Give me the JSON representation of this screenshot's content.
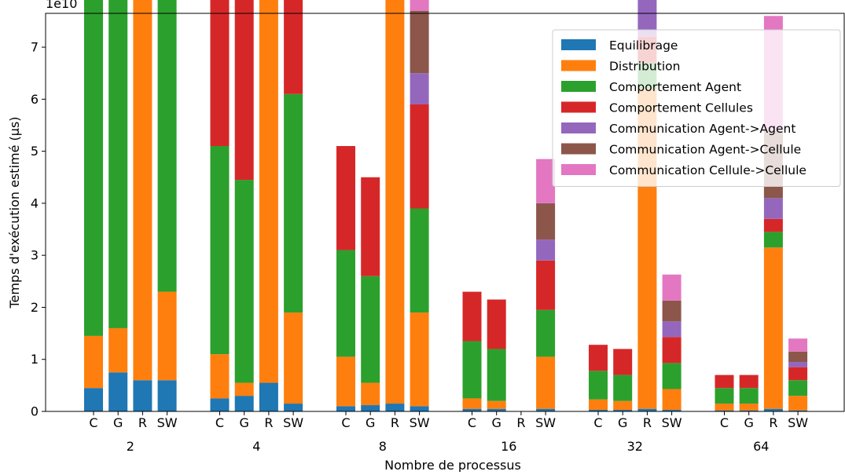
{
  "chart_data": {
    "type": "bar",
    "stacked": true,
    "xlabel": "Nombre de processus",
    "ylabel": "Temps d'exécution estimé (µs)",
    "y_offset_text": "1e10",
    "y_scale_factor": 10000000000,
    "ylim": [
      0,
      7.65
    ],
    "yticks": [
      0,
      1,
      2,
      3,
      4,
      5,
      6,
      7
    ],
    "grid": false,
    "legend_position": "top-right",
    "groups": [
      "2",
      "4",
      "8",
      "16",
      "32",
      "64"
    ],
    "subcategories": [
      "C",
      "G",
      "R",
      "SW"
    ],
    "series": [
      {
        "name": "Equilibrage",
        "color": "#1f77b4",
        "values": [
          [
            0.45,
            0.75,
            0.6,
            0.6
          ],
          [
            0.25,
            0.3,
            0.55,
            0.15
          ],
          [
            0.1,
            0.12,
            0.15,
            0.1
          ],
          [
            0.05,
            0.05,
            0,
            0.05
          ],
          [
            0.03,
            0.03,
            0.05,
            0.03
          ],
          [
            0.02,
            0.02,
            0.05,
            0.02
          ]
        ]
      },
      {
        "name": "Distribution",
        "color": "#ff7f0e",
        "values": [
          [
            1.0,
            0.85,
            7.6,
            1.7
          ],
          [
            0.85,
            0.25,
            13.3,
            1.75
          ],
          [
            0.95,
            0.43,
            11.0,
            1.8
          ],
          [
            0.2,
            0.15,
            0,
            1.0
          ],
          [
            0.2,
            0.17,
            6.15,
            0.4
          ],
          [
            0.13,
            0.13,
            3.1,
            0.28
          ]
        ]
      },
      {
        "name": "Comportement Agent",
        "color": "#2ca02c",
        "values": [
          [
            7.85,
            7.5,
            8.15,
            8.2
          ],
          [
            4.0,
            3.9,
            4.05,
            4.2
          ],
          [
            2.05,
            2.05,
            2.05,
            2.0
          ],
          [
            1.1,
            1.0,
            0,
            0.9
          ],
          [
            0.55,
            0.5,
            0.5,
            0.5
          ],
          [
            0.3,
            0.3,
            0.3,
            0.3
          ]
        ]
      },
      {
        "name": "Comportement Cellules",
        "color": "#d62728",
        "values": [
          [
            8.0,
            7.5,
            8.2,
            8.3
          ],
          [
            4.0,
            3.8,
            4.1,
            4.0
          ],
          [
            2.0,
            1.9,
            2.0,
            2.0
          ],
          [
            0.95,
            0.95,
            0,
            0.95
          ],
          [
            0.5,
            0.5,
            0.5,
            0.5
          ],
          [
            0.25,
            0.25,
            0.25,
            0.25
          ]
        ]
      },
      {
        "name": "Communication Agent->Agent",
        "color": "#9467bd",
        "values": [
          [
            0,
            0,
            5.0,
            1.0
          ],
          [
            0,
            0,
            4.0,
            0.9
          ],
          [
            0,
            0,
            2.5,
            0.6
          ],
          [
            0,
            0,
            0,
            0.4
          ],
          [
            0,
            0,
            0.8,
            0.3
          ],
          [
            0,
            0,
            0.4,
            0.1
          ]
        ]
      },
      {
        "name": "Communication Agent->Cellule",
        "color": "#8c564b",
        "values": [
          [
            0,
            0,
            16.8,
            2.7
          ],
          [
            0,
            0,
            13.9,
            2.2
          ],
          [
            0,
            0,
            8.35,
            1.2
          ],
          [
            0,
            0,
            0,
            0.7
          ],
          [
            0,
            0,
            2.5,
            0.4
          ],
          [
            0,
            0,
            1.3,
            0.2
          ]
        ]
      },
      {
        "name": "Communication Cellule->Cellule",
        "color": "#e377c2",
        "values": [
          [
            0,
            0,
            26.6,
            3.1
          ],
          [
            0,
            0,
            22.7,
            2.5
          ],
          [
            0,
            0,
            14.15,
            1.4
          ],
          [
            0,
            0,
            0,
            0.85
          ],
          [
            0,
            0,
            4.3,
            0.5
          ],
          [
            0,
            0,
            2.2,
            0.25
          ]
        ]
      }
    ]
  }
}
